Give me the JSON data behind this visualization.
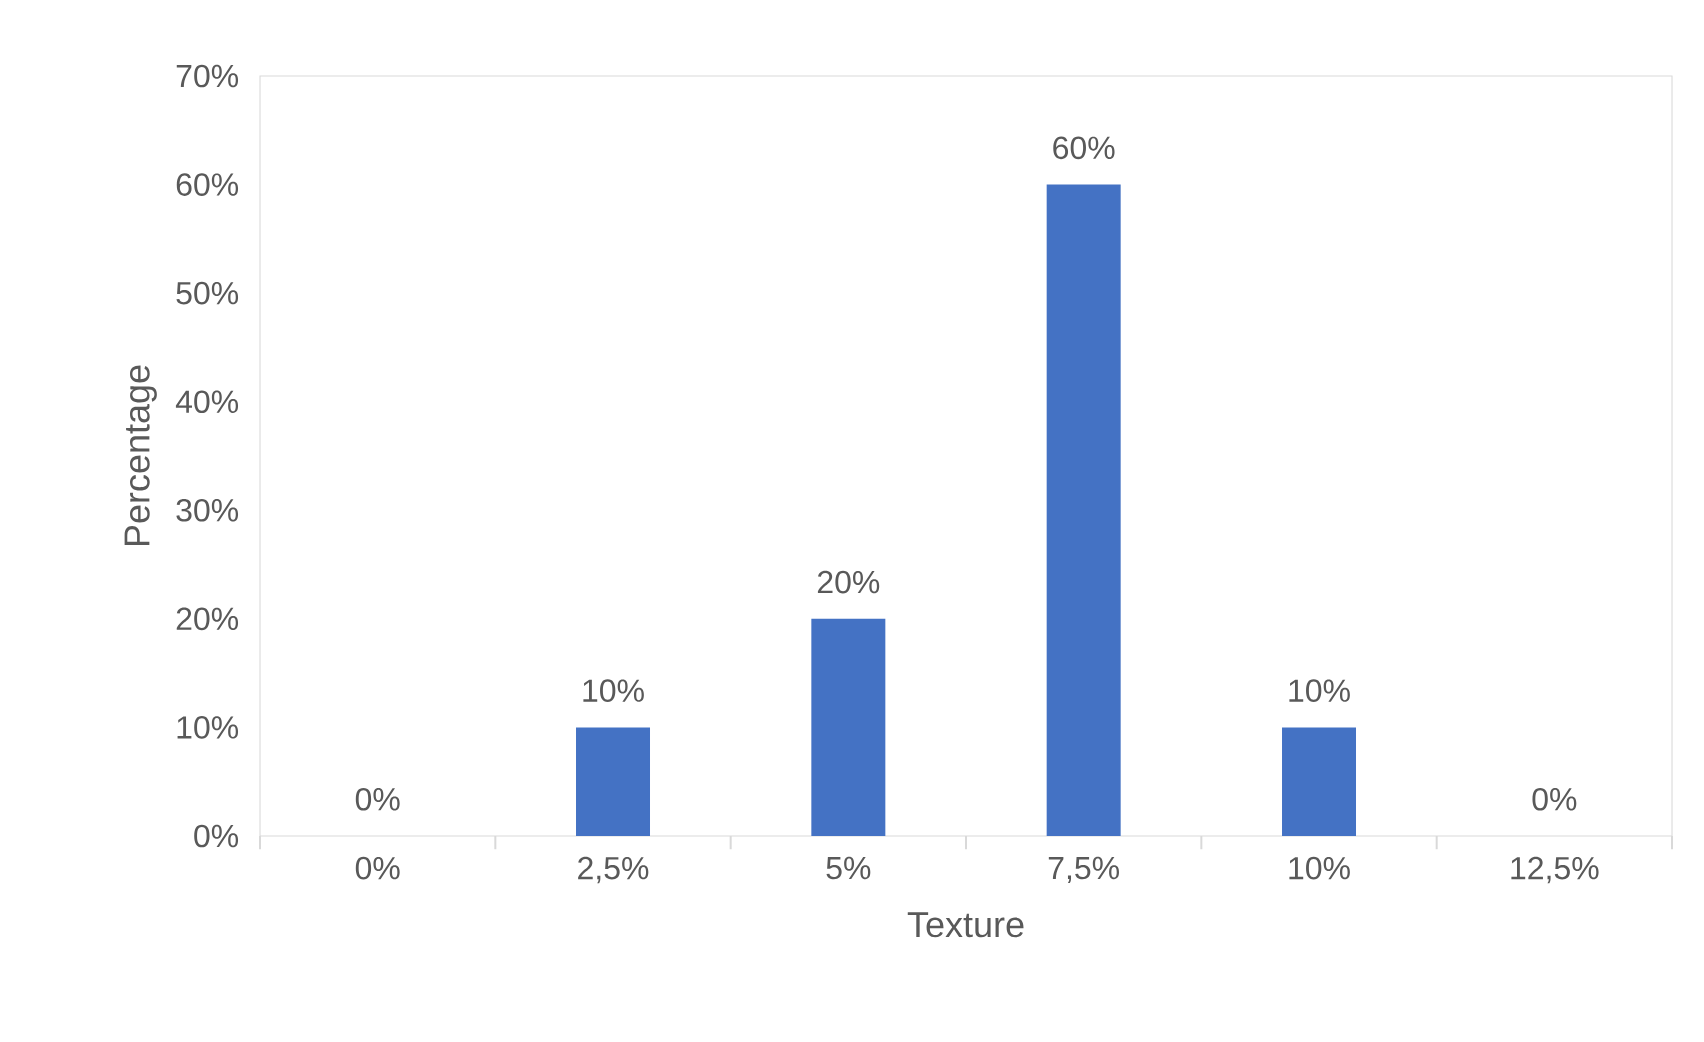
{
  "chart_data": {
    "type": "bar",
    "xlabel": "Texture",
    "ylabel": "Percentage",
    "categories": [
      "0%",
      "2,5%",
      "5%",
      "7,5%",
      "10%",
      "12,5%"
    ],
    "values": [
      0,
      10,
      20,
      60,
      10,
      0
    ],
    "value_labels": [
      "0%",
      "10%",
      "20%",
      "60%",
      "10%",
      "0%"
    ],
    "color": "#4472c4",
    "ylim": [
      0,
      70
    ],
    "yticks": [
      {
        "value": 0,
        "label": "0%"
      },
      {
        "value": 10,
        "label": "10%"
      },
      {
        "value": 20,
        "label": "20%"
      },
      {
        "value": 30,
        "label": "30%"
      },
      {
        "value": 40,
        "label": "40%"
      },
      {
        "value": 50,
        "label": "50%"
      },
      {
        "value": 60,
        "label": "60%"
      },
      {
        "value": 70,
        "label": "70%"
      }
    ],
    "grid": false
  }
}
